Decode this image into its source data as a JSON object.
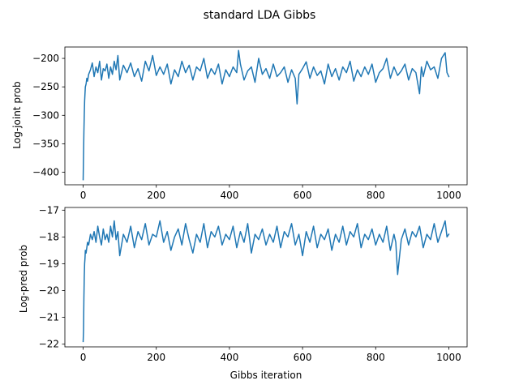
{
  "title": "standard LDA Gibbs",
  "colors": {
    "series": "#1f77b4"
  },
  "chart_data": [
    {
      "type": "line",
      "title": "",
      "xlabel": "",
      "ylabel": "Log-joint prob",
      "xlim": [
        -50,
        1050
      ],
      "ylim": [
        -422,
        -180
      ],
      "xticks": [
        0,
        200,
        400,
        600,
        800,
        1000
      ],
      "yticks": [
        -400,
        -350,
        -300,
        -250,
        -200
      ],
      "xtick_labels": [
        "0",
        "200",
        "400",
        "600",
        "800",
        "1000"
      ],
      "ytick_labels": [
        "−400",
        "−350",
        "−300",
        "−250",
        "−200"
      ],
      "grid": false,
      "series": [
        {
          "name": "",
          "x": [
            0,
            1,
            2,
            3,
            4,
            5,
            6,
            8,
            10,
            12,
            15,
            20,
            25,
            30,
            35,
            40,
            45,
            50,
            55,
            60,
            65,
            70,
            75,
            80,
            85,
            90,
            95,
            100,
            110,
            120,
            130,
            140,
            150,
            160,
            170,
            180,
            190,
            200,
            210,
            220,
            230,
            240,
            250,
            260,
            270,
            280,
            290,
            300,
            310,
            320,
            330,
            340,
            350,
            360,
            370,
            380,
            390,
            400,
            410,
            420,
            425,
            430,
            440,
            450,
            460,
            470,
            480,
            490,
            500,
            510,
            520,
            530,
            540,
            550,
            560,
            570,
            580,
            585,
            590,
            600,
            610,
            620,
            630,
            640,
            650,
            660,
            670,
            680,
            690,
            700,
            710,
            720,
            730,
            740,
            750,
            760,
            770,
            780,
            790,
            800,
            810,
            820,
            830,
            840,
            850,
            860,
            870,
            880,
            890,
            900,
            910,
            920,
            925,
            930,
            940,
            950,
            960,
            970,
            980,
            990,
            995,
            1000
          ],
          "y": [
            -413,
            -370,
            -330,
            -300,
            -275,
            -262,
            -250,
            -245,
            -235,
            -240,
            -228,
            -220,
            -208,
            -232,
            -215,
            -225,
            -205,
            -238,
            -218,
            -222,
            -210,
            -235,
            -215,
            -228,
            -205,
            -220,
            -195,
            -238,
            -212,
            -225,
            -208,
            -232,
            -218,
            -240,
            -205,
            -222,
            -195,
            -230,
            -215,
            -228,
            -210,
            -245,
            -220,
            -232,
            -205,
            -225,
            -212,
            -238,
            -215,
            -222,
            -200,
            -235,
            -218,
            -228,
            -210,
            -245,
            -220,
            -232,
            -215,
            -225,
            -186,
            -210,
            -238,
            -222,
            -215,
            -242,
            -200,
            -228,
            -218,
            -235,
            -210,
            -232,
            -225,
            -215,
            -242,
            -220,
            -235,
            -280,
            -228,
            -218,
            -206,
            -235,
            -215,
            -230,
            -222,
            -245,
            -210,
            -232,
            -218,
            -238,
            -215,
            -225,
            -205,
            -240,
            -220,
            -232,
            -215,
            -228,
            -210,
            -242,
            -225,
            -218,
            -200,
            -235,
            -215,
            -230,
            -222,
            -210,
            -238,
            -218,
            -225,
            -262,
            -215,
            -232,
            -205,
            -220,
            -215,
            -235,
            -200,
            -190,
            -225,
            -232
          ]
        }
      ]
    },
    {
      "type": "line",
      "title": "",
      "xlabel": "Gibbs iteration",
      "ylabel": "Log-pred prob",
      "xlim": [
        -50,
        1050
      ],
      "ylim": [
        -22.1,
        -16.9
      ],
      "xticks": [
        0,
        200,
        400,
        600,
        800,
        1000
      ],
      "yticks": [
        -22,
        -21,
        -20,
        -19,
        -18,
        -17
      ],
      "xtick_labels": [
        "0",
        "200",
        "400",
        "600",
        "800",
        "1000"
      ],
      "ytick_labels": [
        "−22",
        "−21",
        "−20",
        "−19",
        "−18",
        "−17"
      ],
      "grid": false,
      "series": [
        {
          "name": "",
          "x": [
            0,
            1,
            2,
            3,
            4,
            5,
            6,
            8,
            10,
            12,
            15,
            20,
            25,
            30,
            35,
            40,
            45,
            50,
            55,
            60,
            65,
            70,
            75,
            80,
            85,
            90,
            95,
            100,
            110,
            120,
            130,
            140,
            150,
            160,
            170,
            180,
            190,
            200,
            210,
            220,
            230,
            240,
            250,
            260,
            270,
            280,
            290,
            300,
            310,
            320,
            330,
            340,
            350,
            360,
            370,
            380,
            390,
            400,
            410,
            420,
            430,
            440,
            450,
            460,
            470,
            480,
            490,
            500,
            510,
            520,
            530,
            540,
            550,
            560,
            570,
            580,
            590,
            600,
            610,
            620,
            630,
            640,
            650,
            660,
            670,
            680,
            690,
            700,
            710,
            720,
            730,
            740,
            750,
            760,
            770,
            780,
            790,
            800,
            810,
            820,
            830,
            840,
            850,
            855,
            860,
            870,
            880,
            890,
            900,
            910,
            920,
            930,
            940,
            950,
            960,
            970,
            980,
            990,
            995,
            1000
          ],
          "y": [
            -21.9,
            -21.5,
            -20.3,
            -19.5,
            -19.0,
            -18.8,
            -18.5,
            -18.6,
            -18.4,
            -18.2,
            -18.3,
            -17.9,
            -18.1,
            -17.8,
            -18.2,
            -17.6,
            -18.0,
            -18.3,
            -17.7,
            -18.1,
            -17.9,
            -18.2,
            -17.6,
            -18.0,
            -17.4,
            -18.1,
            -17.8,
            -18.7,
            -17.9,
            -18.2,
            -17.6,
            -18.4,
            -17.8,
            -18.1,
            -17.5,
            -18.3,
            -17.9,
            -18.0,
            -17.4,
            -18.2,
            -17.8,
            -18.5,
            -18.0,
            -17.7,
            -18.3,
            -17.5,
            -18.1,
            -18.6,
            -17.9,
            -18.2,
            -17.5,
            -18.4,
            -17.8,
            -18.0,
            -17.6,
            -18.3,
            -17.9,
            -18.1,
            -17.6,
            -18.4,
            -17.8,
            -18.2,
            -17.5,
            -18.6,
            -17.9,
            -18.1,
            -17.7,
            -18.3,
            -17.9,
            -18.2,
            -17.6,
            -18.4,
            -17.8,
            -18.0,
            -17.5,
            -18.3,
            -17.9,
            -18.7,
            -17.8,
            -18.2,
            -17.6,
            -18.4,
            -17.9,
            -18.1,
            -17.7,
            -18.5,
            -17.9,
            -18.2,
            -17.6,
            -18.3,
            -17.8,
            -18.0,
            -17.5,
            -18.4,
            -17.9,
            -18.1,
            -17.7,
            -18.3,
            -17.9,
            -18.2,
            -17.6,
            -18.5,
            -17.9,
            -18.2,
            -19.4,
            -18.1,
            -17.7,
            -18.3,
            -17.8,
            -18.0,
            -17.6,
            -18.4,
            -17.9,
            -18.1,
            -17.5,
            -18.2,
            -17.8,
            -17.4,
            -18.0,
            -17.9
          ]
        }
      ]
    }
  ]
}
